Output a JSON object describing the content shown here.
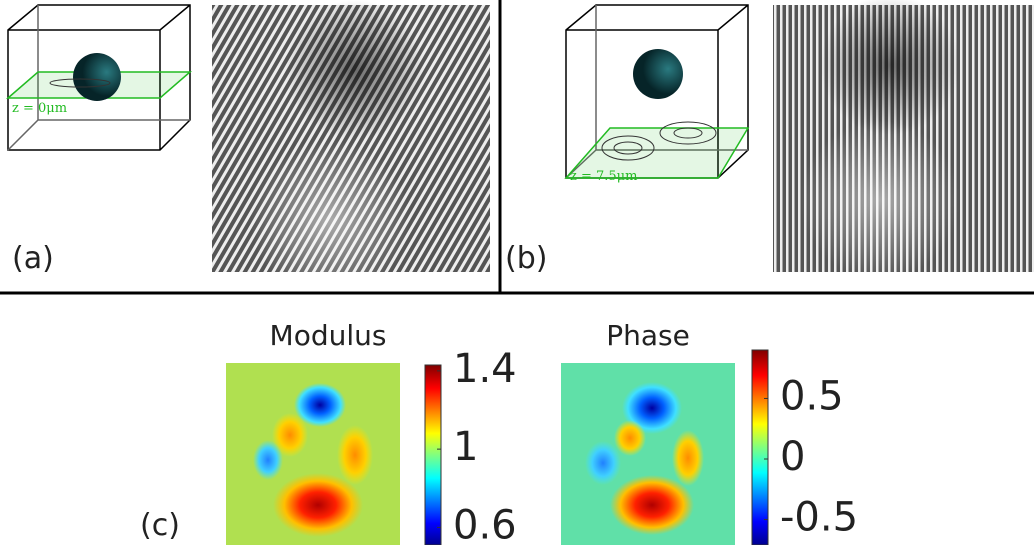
{
  "panels": [
    {
      "label": "(a)",
      "plane_label": "z = 0μm"
    },
    {
      "label": "(b)",
      "plane_label": "z = 7.5μm"
    },
    {
      "label": "(c)",
      "maps": [
        {
          "title": "Modulus",
          "ylim": [
            0.51,
            1.43
          ],
          "yticks": [
            0.6,
            1,
            1.4
          ]
        },
        {
          "title": "Phase",
          "ylim": [
            -0.71,
            0.9
          ],
          "yticks": [
            -0.5,
            0,
            0.5
          ]
        }
      ]
    }
  ]
}
